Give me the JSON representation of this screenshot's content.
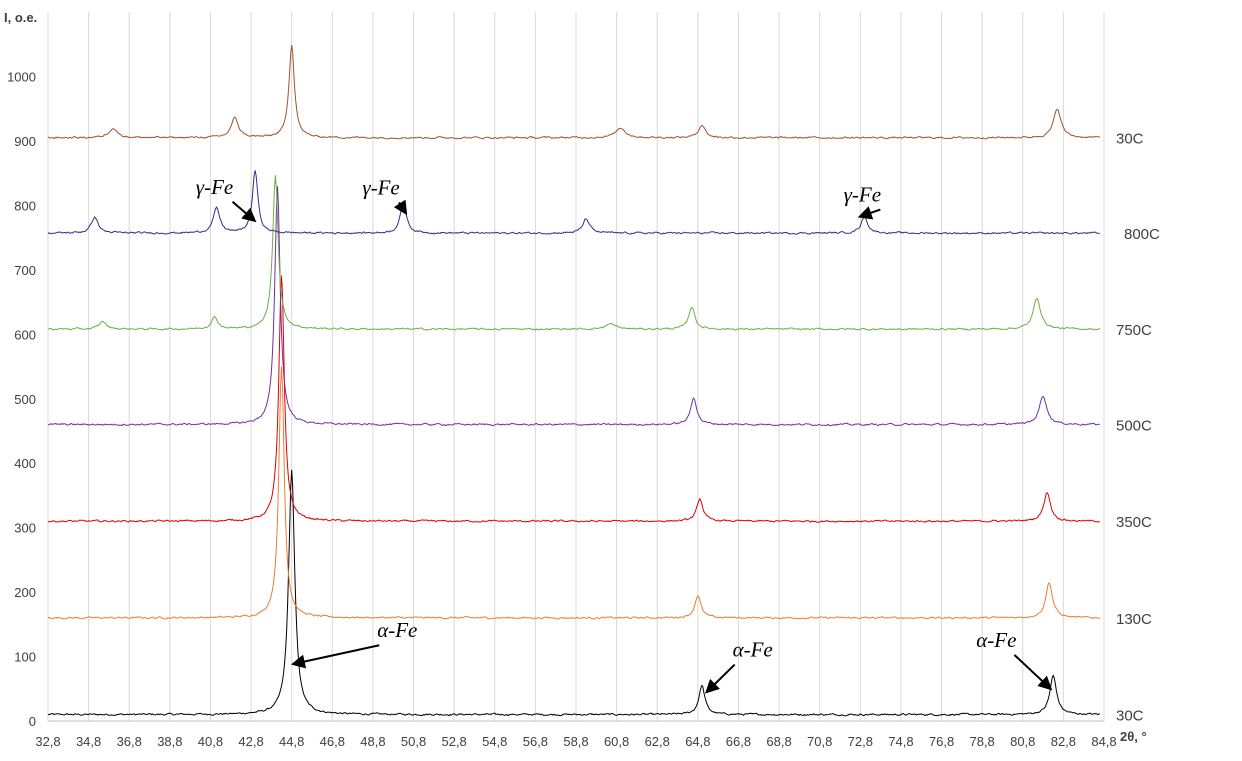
{
  "chart_data": {
    "type": "line",
    "title": "",
    "ylabel": "I, o.e.",
    "xlabel": "2θ, °",
    "xlim": [
      32.8,
      84.8
    ],
    "ylim": [
      0,
      1050
    ],
    "x_ticks": [
      "32,8",
      "34,8",
      "36,8",
      "38,8",
      "40,8",
      "42,8",
      "44,8",
      "46,8",
      "48,8",
      "50,8",
      "52,8",
      "54,8",
      "56,8",
      "58,8",
      "60,8",
      "62,8",
      "64,8",
      "66,8",
      "68,8",
      "70,8",
      "72,8",
      "74,8",
      "76,8",
      "78,8",
      "80,8",
      "82,8",
      "84,8"
    ],
    "y_ticks": [
      "0",
      "100",
      "200",
      "300",
      "400",
      "500",
      "600",
      "700",
      "800",
      "900",
      "1000"
    ],
    "grid": "vertical",
    "series": [
      {
        "name": "30С",
        "color": "#000000",
        "baseline": 10,
        "peaks": [
          [
            44.8,
            380,
            0.18
          ],
          [
            65.0,
            45,
            0.18
          ],
          [
            82.3,
            60,
            0.2
          ]
        ]
      },
      {
        "name": "130С",
        "color": "#ed7d31",
        "baseline": 160,
        "peaks": [
          [
            44.3,
            390,
            0.16
          ],
          [
            64.8,
            35,
            0.18
          ],
          [
            82.1,
            55,
            0.2
          ]
        ]
      },
      {
        "name": "350С",
        "color": "#e00000",
        "baseline": 310,
        "peaks": [
          [
            44.3,
            380,
            0.16
          ],
          [
            64.9,
            35,
            0.18
          ],
          [
            82.0,
            45,
            0.2
          ]
        ]
      },
      {
        "name": "500С",
        "color": "#7030a0",
        "baseline": 460,
        "peaks": [
          [
            44.1,
            370,
            0.16
          ],
          [
            64.6,
            42,
            0.18
          ],
          [
            81.8,
            45,
            0.22
          ]
        ]
      },
      {
        "name": "750С",
        "color": "#70ad47",
        "baseline": 608,
        "peaks": [
          [
            35.5,
            12,
            0.2
          ],
          [
            41.0,
            18,
            0.2
          ],
          [
            44.0,
            240,
            0.16
          ],
          [
            60.5,
            8,
            0.3
          ],
          [
            64.5,
            35,
            0.18
          ],
          [
            81.5,
            48,
            0.22
          ]
        ]
      },
      {
        "name": "800С",
        "color": "#2e2e8b",
        "baseline": 757,
        "peaks": [
          [
            35.1,
            25,
            0.2
          ],
          [
            41.1,
            38,
            0.2
          ],
          [
            43.0,
            97,
            0.16
          ],
          [
            50.3,
            48,
            0.18
          ],
          [
            59.3,
            22,
            0.2
          ],
          [
            73.0,
            25,
            0.2
          ]
        ]
      },
      {
        "name": "30С",
        "color": "#a0522d",
        "baseline": 905,
        "peaks": [
          [
            36.0,
            15,
            0.25
          ],
          [
            42.0,
            30,
            0.22
          ],
          [
            44.8,
            145,
            0.16
          ],
          [
            61.0,
            15,
            0.3
          ],
          [
            65.0,
            20,
            0.2
          ],
          [
            82.5,
            45,
            0.22
          ]
        ]
      }
    ],
    "annotations": [
      {
        "text": "γ-Fe",
        "x": 41.0,
        "y": 818,
        "arrow_to": [
          42.8,
          781
        ]
      },
      {
        "text": "γ-Fe",
        "x": 49.2,
        "y": 817,
        "arrow_to": [
          50.3,
          794
        ]
      },
      {
        "text": "γ-Fe",
        "x": 72.9,
        "y": 806,
        "arrow_to": [
          73.0,
          785
        ]
      },
      {
        "text": "α-Fe",
        "x": 50.0,
        "y": 130,
        "arrow_to": [
          45.1,
          90
        ]
      },
      {
        "text": "α-Fe",
        "x": 67.5,
        "y": 100,
        "arrow_to": [
          65.4,
          50
        ]
      },
      {
        "text": "α-Fe",
        "x": 79.5,
        "y": 115,
        "arrow_to": [
          82.0,
          55
        ]
      }
    ]
  }
}
